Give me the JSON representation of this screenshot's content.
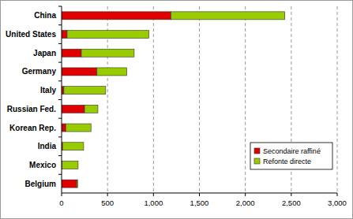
{
  "chart_data": {
    "type": "bar",
    "orientation": "horizontal",
    "stacked": true,
    "categories": [
      "China",
      "United States",
      "Japan",
      "Germany",
      "Italy",
      "Russian Fed.",
      "Korean Rep.",
      "India",
      "Mexico",
      "Belgium"
    ],
    "series": [
      {
        "name": "Secondaire raffiné",
        "color": "#e00000",
        "values": [
          1190,
          60,
          215,
          385,
          25,
          250,
          45,
          10,
          5,
          165
        ]
      },
      {
        "name": "Refonte directe",
        "color": "#99cc00",
        "values": [
          1240,
          890,
          575,
          325,
          455,
          145,
          275,
          230,
          175,
          10
        ]
      }
    ],
    "xlim": [
      0,
      3000
    ],
    "xticks": [
      0,
      500,
      {
        "value": 1000,
        "label": "1,000"
      },
      {
        "value": 1500,
        "label": "1,500"
      },
      {
        "value": 2000,
        "label": "2,000"
      },
      {
        "value": 2500,
        "label": "2,500"
      },
      {
        "value": 3000,
        "label": "3,000"
      }
    ],
    "grid": true,
    "legend": "lower right"
  }
}
